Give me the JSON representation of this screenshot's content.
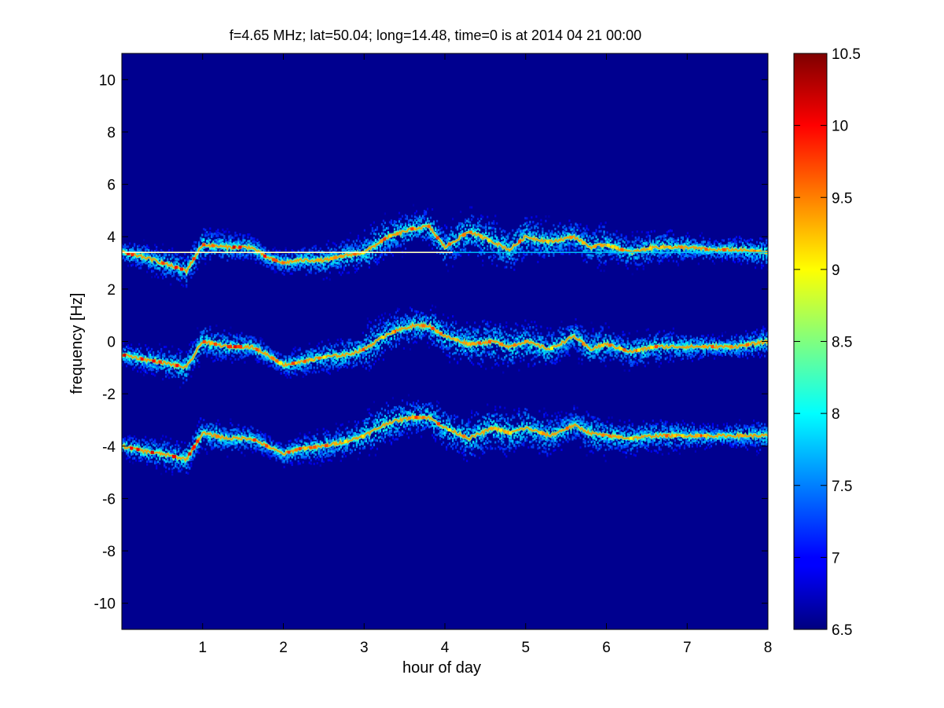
{
  "chart_data": {
    "type": "heatmap",
    "title": "f=4.65 MHz;  lat=50.04; long=14.48, time=0 is at 2014 04 21 00:00",
    "xlabel": "hour of day",
    "ylabel": "frequency [Hz]",
    "xlim": [
      0,
      8
    ],
    "ylim": [
      -11,
      11
    ],
    "x_ticks": [
      1,
      2,
      3,
      4,
      5,
      6,
      7,
      8
    ],
    "y_ticks": [
      -10,
      -8,
      -6,
      -4,
      -2,
      0,
      2,
      4,
      6,
      8,
      10
    ],
    "colorbar": {
      "range": [
        6.5,
        10.5
      ],
      "ticks": [
        6.5,
        7,
        7.5,
        8,
        8.5,
        9,
        9.5,
        10,
        10.5
      ],
      "colormap": "jet"
    },
    "background_value": 6.5,
    "series": [
      {
        "x": [
          0,
          0.3,
          0.5,
          0.8,
          1.0,
          1.3,
          1.6,
          1.8,
          2.0,
          2.2,
          2.5,
          2.8,
          3.0,
          3.3,
          3.6,
          3.8,
          4.0,
          4.3,
          4.6,
          4.8,
          5.0,
          5.3,
          5.6,
          5.8,
          6.0,
          6.3,
          6.6,
          7.0,
          7.3,
          7.6,
          8.0
        ],
        "y": [
          3.4,
          3.2,
          3.0,
          2.7,
          3.7,
          3.6,
          3.6,
          3.2,
          3.0,
          3.1,
          3.1,
          3.3,
          3.4,
          4.0,
          4.3,
          4.4,
          3.6,
          4.2,
          3.8,
          3.5,
          4.0,
          3.8,
          4.0,
          3.6,
          3.7,
          3.4,
          3.6,
          3.6,
          3.5,
          3.5,
          3.4
        ]
      },
      {
        "x": [
          0,
          0.3,
          0.5,
          0.8,
          1.0,
          1.3,
          1.6,
          1.8,
          2.0,
          2.2,
          2.5,
          2.8,
          3.0,
          3.3,
          3.6,
          3.8,
          4.0,
          4.3,
          4.6,
          4.8,
          5.0,
          5.3,
          5.6,
          5.8,
          6.0,
          6.3,
          6.6,
          7.0,
          7.3,
          7.6,
          8.0
        ],
        "y": [
          -0.5,
          -0.7,
          -0.8,
          -1.0,
          0.0,
          -0.2,
          -0.2,
          -0.5,
          -0.9,
          -0.8,
          -0.6,
          -0.5,
          -0.3,
          0.3,
          0.6,
          0.6,
          0.2,
          -0.1,
          0.0,
          -0.2,
          0.0,
          -0.3,
          0.2,
          -0.3,
          -0.1,
          -0.4,
          -0.2,
          -0.2,
          -0.2,
          -0.2,
          0.0
        ]
      },
      {
        "x": [
          0,
          0.3,
          0.5,
          0.8,
          1.0,
          1.3,
          1.6,
          1.8,
          2.0,
          2.2,
          2.5,
          2.8,
          3.0,
          3.3,
          3.6,
          3.8,
          4.0,
          4.3,
          4.6,
          4.8,
          5.0,
          5.3,
          5.6,
          5.8,
          6.0,
          6.3,
          6.6,
          7.0,
          7.3,
          7.6,
          8.0
        ],
        "y": [
          -4.0,
          -4.2,
          -4.3,
          -4.5,
          -3.5,
          -3.7,
          -3.7,
          -4.0,
          -4.3,
          -4.1,
          -4.0,
          -3.8,
          -3.6,
          -3.1,
          -2.9,
          -2.9,
          -3.3,
          -3.7,
          -3.3,
          -3.5,
          -3.3,
          -3.6,
          -3.2,
          -3.5,
          -3.6,
          -3.7,
          -3.6,
          -3.6,
          -3.6,
          -3.6,
          -3.6
        ]
      }
    ],
    "carrier_line": {
      "y": 3.4,
      "x_range": [
        0,
        8
      ]
    }
  }
}
